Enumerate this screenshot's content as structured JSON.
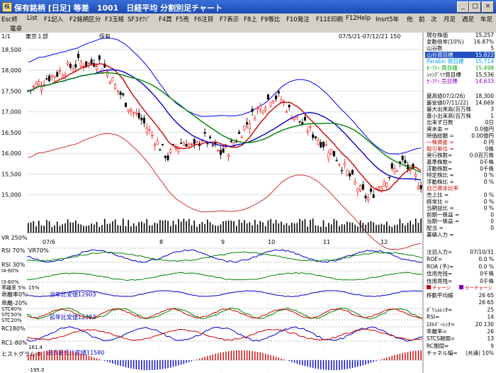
{
  "window": {
    "title": "保有銘柄 [日足] 等差　1001　日経平均 分割別足チャート",
    "buttons": [
      "_",
      "□",
      "×"
    ]
  },
  "menu": [
    "Esc終",
    "List",
    "F1記入",
    "F2銘柄区分",
    "F3玉帳",
    "SF3ｵｳｿﾞ",
    "F4買",
    "F5売",
    "F6注目",
    "F7表示",
    "F8上",
    "F9等比",
    "F10発注",
    "F11E印刷",
    "F12Help",
    "Insrt5年",
    "他",
    "前",
    "次",
    "月足",
    "週足",
    "年足"
  ],
  "submenu": [
    "電卓"
  ],
  "header": {
    "page": "1/1",
    "market": "東京１部",
    "group": "保有",
    "period": "07/5/21-07/12/21 150"
  },
  "price_axis": [
    "18,500",
    "18,000",
    "17,500",
    "17,000",
    "16,500",
    "16,000",
    "15,500",
    "15,000"
  ],
  "month_labels": [
    "07/6",
    "8",
    "9",
    "10",
    "11",
    "12"
  ],
  "sub_labels": {
    "vr": "VR 250%",
    "rsi70": "RSI 70%",
    "vr70": "VR70%",
    "rsi30": "RSI 30%",
    "i4": "I4-60%",
    "i3": "I3-60%",
    "ratio5": "乖離率 5%",
    "ratio0": "乖離率0%",
    "ratio_m20": "乖離-20%",
    "stc80": "STC80%",
    "stc50": "STC50%",
    "stc20": "STC20%",
    "rc0": "RC0%",
    "rc_m": "RC1-80%",
    "rc_val": "161.4",
    "hist": "ヒストグラム 0",
    "hist_val": "-195.0",
    "rc80": "RC180%"
  },
  "notes": {
    "yearly_low1": "当年比安値12903",
    "yearly_low2": "前年比安値12383",
    "past_low": "過去最低比安値11580",
    "pct15": "15%"
  },
  "info_top": [
    {
      "label": "現在株価",
      "value": "15,257",
      "color": "#000000"
    },
    {
      "label": "変動倍率(10%)",
      "value": "16.87%",
      "color": "#000000"
    },
    {
      "label": "山谷数",
      "value": "5",
      "color": "#000000"
    },
    {
      "label": "山谷買目標",
      "value": "15,822",
      "color": "#ff0000",
      "bg": "#2050c0",
      "fg": "#ffffff"
    },
    {
      "label": "Parabic 買目標",
      "value": "15,714",
      "color": "#00a0ff"
    },
    {
      "label": "ｾｰﾌﾃｨ 買目標",
      "value": "15,498",
      "color": "#00a000"
    },
    {
      "label": "ｼｬﾝﾃﾞﾘｱ買目標",
      "value": "15,536",
      "color": "#000000"
    },
    {
      "label": "ｾｰﾌﾃｨ 売目標",
      "value": "14,633",
      "color": "#8000c0"
    }
  ],
  "info_mid": [
    {
      "label": "最高値07/2/26)",
      "value": "18,300"
    },
    {
      "label": "最安値07/11/22)",
      "value": "14,669"
    },
    {
      "label": "最大出来高(百万株",
      "value": "3"
    },
    {
      "label": "最小出来高(百万株",
      "value": "1"
    },
    {
      "label": "出来ず日数",
      "value": "0日"
    },
    {
      "label": "資本金 =",
      "value": "0.0億円"
    },
    {
      "label": "時価総額 =",
      "value": "0.00億円"
    },
    {
      "label": "一株資産 =",
      "value": "0 円"
    },
    {
      "label": "取引単位 =",
      "value": "0株"
    },
    {
      "label": "発行株数=",
      "value": "0.0百万株"
    },
    {
      "label": "基準株数=",
      "value": "0千株"
    },
    {
      "label": "浮動株数=",
      "value": "0千株"
    },
    {
      "label": "特定株比 =",
      "value": "0 %"
    },
    {
      "label": "浮動株比 =",
      "value": "0 %"
    },
    {
      "label": "自己資本比率",
      "value": ""
    },
    {
      "label": "売上比 =",
      "value": "0 %"
    },
    {
      "label": "経常比 =",
      "value": "0 %"
    },
    {
      "label": "当期益比 =",
      "value": "0 %"
    },
    {
      "label": "前期一株益 =",
      "value": "0"
    },
    {
      "label": "当期一株益 =",
      "value": "0"
    },
    {
      "label": "配当 =",
      "value": "0"
    },
    {
      "label": "業績入力 =",
      "value": ""
    }
  ],
  "info_low": [
    {
      "label": "注目入力=",
      "value": "07/10/31"
    },
    {
      "label": "ROE=",
      "value": "0.0 %"
    },
    {
      "label": "ROA (予)=",
      "value": "0.0 %"
    },
    {
      "label": "信用売残=",
      "value": "0千株"
    },
    {
      "label": "信用買残=",
      "value": "0千株"
    },
    {
      "label": "移動平均線",
      "value": "26 65"
    },
    {
      "label": "",
      "value": "26 65"
    },
    {
      "label": "ﾎﾞﾘｭﾑﾚｼｵ=",
      "value": "25"
    },
    {
      "label": "RSI=",
      "value": "14"
    },
    {
      "label": "ｴﾈﾙｷﾞｰﾚｼｵ=",
      "value": "20 130"
    },
    {
      "label": "乖離率=",
      "value": "26"
    },
    {
      "label": "STCS期間=",
      "value": "13"
    },
    {
      "label": "RC期間=",
      "value": "9"
    },
    {
      "label": "チャネル幅=",
      "value": "(共通) 10%"
    }
  ],
  "legend_small": [
    "チャージ",
    "セーチャージ",
    "",
    "セーフィーバー"
  ],
  "colors": {
    "bg": "#ffffff",
    "up": "#ff0000",
    "down": "#000000",
    "ma_short": "#cc0000",
    "ma_mid": "#0000cc",
    "ma_long": "#008000",
    "bband": "#0000ff",
    "bband_low": "#cc3333",
    "title": "#1c49b5"
  },
  "chart_data": {
    "type": "candlestick",
    "y_range": [
      14500,
      18600
    ],
    "dates": "07/5/21-07/12/21",
    "close_approx": [
      17500,
      17650,
      17800,
      17900,
      18000,
      18100,
      18200,
      18150,
      18250,
      18000,
      17600,
      17300,
      17000,
      16800,
      16500,
      16200,
      15900,
      16200,
      16300,
      16100,
      16400,
      16200,
      16000,
      16100,
      16400,
      16700,
      17000,
      17200,
      17400,
      17300,
      17000,
      16800,
      16600,
      16400,
      16200,
      16000,
      15700,
      15400,
      15100,
      14900,
      15200,
      15400,
      15600,
      15800,
      15500,
      15257
    ]
  }
}
